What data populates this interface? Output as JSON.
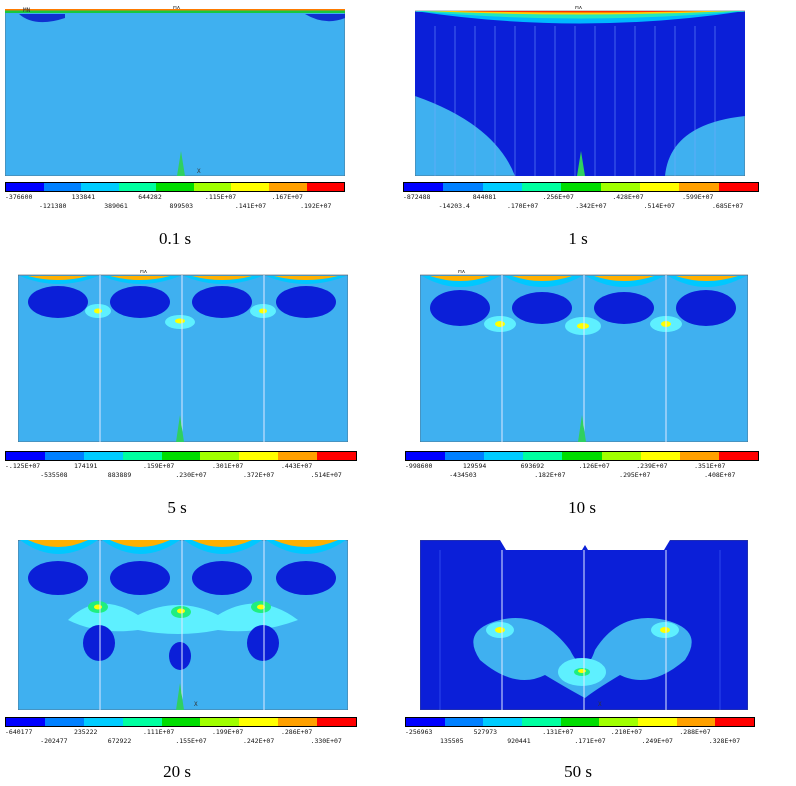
{
  "colors": [
    "#0000ff",
    "#0080ff",
    "#00ccff",
    "#00ffa0",
    "#00dd00",
    "#a0ff00",
    "#ffff00",
    "#ffa000",
    "#ff0000"
  ],
  "panels": [
    {
      "caption": "0.1 s",
      "legend_top": [
        "-376600",
        "133841",
        "644282",
        ".115E+07",
        ".167E+07"
      ],
      "legend_bottom": [
        "-121380",
        "389061",
        "899503",
        ".141E+07",
        ".192E+07"
      ],
      "mx_label": "MX",
      "mn_label": "MN"
    },
    {
      "caption": "1 s",
      "legend_top": [
        "-872488",
        "844081",
        ".256E+07",
        ".428E+07",
        ".599E+07"
      ],
      "legend_bottom": [
        "-14203.4",
        ".170E+07",
        ".342E+07",
        ".514E+07",
        ".685E+07"
      ],
      "mx_label": "MX"
    },
    {
      "caption": "5 s",
      "legend_top": [
        "-.125E+07",
        "174191",
        ".159E+07",
        ".301E+07",
        ".443E+07"
      ],
      "legend_bottom": [
        "-535508",
        "883889",
        ".230E+07",
        ".372E+07",
        ".514E+07"
      ],
      "mx_label": "MX"
    },
    {
      "caption": "10 s",
      "legend_top": [
        "-998600",
        "129594",
        "693692",
        ".126E+07",
        ".239E+07",
        ".351E+07"
      ],
      "legend_bottom": [
        "-434503",
        ".182E+07",
        ".295E+07",
        ".408E+07"
      ],
      "mx_label": "MX"
    },
    {
      "caption": "20 s",
      "legend_top": [
        "-640177",
        "235222",
        ".111E+07",
        ".199E+07",
        ".286E+07"
      ],
      "legend_bottom": [
        "-202477",
        "672922",
        ".155E+07",
        ".242E+07",
        ".330E+07"
      ],
      "mx_label": "MX"
    },
    {
      "caption": "50 s",
      "legend_top": [
        "-256963",
        "527973",
        ".131E+07",
        ".210E+07",
        ".288E+07"
      ],
      "legend_bottom": [
        "135505",
        "920441",
        ".171E+07",
        ".249E+07",
        ".328E+07"
      ]
    }
  ],
  "axis_label": "X"
}
